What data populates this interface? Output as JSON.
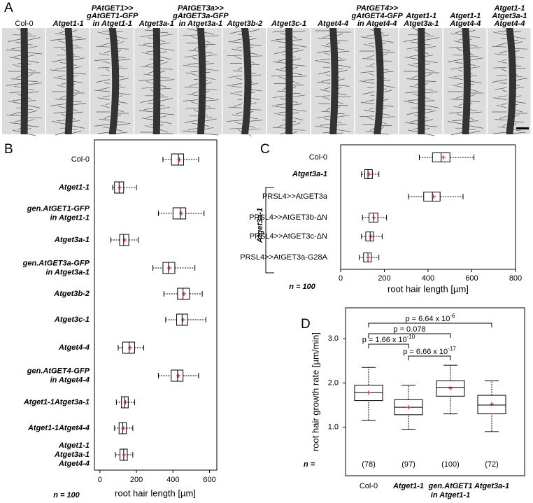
{
  "panel_labels": [
    "A",
    "B",
    "C",
    "D"
  ],
  "panel_a": {
    "columns": [
      [
        "Col-0"
      ],
      [
        "Atget1-1"
      ],
      [
        "PAtGET1>>",
        "gAtGET1-GFP",
        "in Atget1-1"
      ],
      [
        "Atget3a-1"
      ],
      [
        "PAtGET3a>>",
        "gAtGET3a-GFP",
        "in Atget3a-1"
      ],
      [
        "Atget3b-2"
      ],
      [
        "Atget3c-1"
      ],
      [
        "Atget4-4"
      ],
      [
        "PAtGET4>>",
        "gAtGET4-GFP",
        "in Atget4-4"
      ],
      [
        "Atget1-1",
        "Atget3a-1"
      ],
      [
        "Atget1-1",
        "Atget4-4"
      ],
      [
        "Atget1-1",
        "Atget3a-1",
        "Atget4-4"
      ]
    ]
  },
  "chart_data": [
    {
      "type": "box",
      "orientation": "horizontal",
      "categories": [
        [
          "Col-0"
        ],
        [
          "Atget1-1"
        ],
        [
          "gen.AtGET1-GFP",
          "in Atget1-1"
        ],
        [
          "Atget3a-1"
        ],
        [
          "gen.AtGET3a-GFP",
          "in Atget3a-1"
        ],
        [
          "Atget3b-2"
        ],
        [
          "Atget3c-1"
        ],
        [
          "Atget4-4"
        ],
        [
          "gen.AtGET4-GFP",
          "in Atget4-4"
        ],
        [
          "Atget1-1Atget3a-1"
        ],
        [
          "Atget1-1Atget4-4"
        ],
        [
          "Atget1-1",
          "Atget3a-1",
          "Atget4-4"
        ]
      ],
      "boxes": [
        {
          "min": 345,
          "q1": 392,
          "median": 430,
          "q3": 458,
          "max": 540,
          "mean": 435
        },
        {
          "min": 70,
          "q1": 80,
          "median": 105,
          "q3": 130,
          "max": 200,
          "mean": 108
        },
        {
          "min": 320,
          "q1": 400,
          "median": 440,
          "q3": 470,
          "max": 570,
          "mean": 445
        },
        {
          "min": 60,
          "q1": 108,
          "median": 130,
          "q3": 158,
          "max": 210,
          "mean": 135
        },
        {
          "min": 290,
          "q1": 345,
          "median": 375,
          "q3": 410,
          "max": 520,
          "mean": 380
        },
        {
          "min": 350,
          "q1": 425,
          "median": 455,
          "q3": 490,
          "max": 560,
          "mean": 460
        },
        {
          "min": 360,
          "q1": 420,
          "median": 450,
          "q3": 480,
          "max": 580,
          "mean": 455
        },
        {
          "min": 100,
          "q1": 125,
          "median": 160,
          "q3": 190,
          "max": 240,
          "mean": 165
        },
        {
          "min": 320,
          "q1": 390,
          "median": 425,
          "q3": 455,
          "max": 540,
          "mean": 430
        },
        {
          "min": 90,
          "q1": 118,
          "median": 135,
          "q3": 155,
          "max": 190,
          "mean": 140
        },
        {
          "min": 80,
          "q1": 105,
          "median": 125,
          "q3": 145,
          "max": 180,
          "mean": 128
        },
        {
          "min": 85,
          "q1": 110,
          "median": 130,
          "q3": 150,
          "max": 180,
          "mean": 132
        }
      ],
      "box_color": "#000000",
      "mean_color": "#e02020",
      "xlim": [
        -30,
        640
      ],
      "xticks": [
        0,
        200,
        400,
        600
      ],
      "x_label": "root hair length [µm]",
      "note": "n = 100"
    },
    {
      "type": "box",
      "orientation": "horizontal",
      "categories": [
        [
          "Col-0"
        ],
        [
          "Atget3a-1"
        ],
        [
          "PRSL4>>AtGET3a"
        ],
        [
          "PRSL4>>AtGET3b-ΔN"
        ],
        [
          "PRSL4>>AtGET3c-ΔN"
        ],
        [
          "PRSL4>>AtGET3a-G28A"
        ]
      ],
      "boxes": [
        {
          "min": 360,
          "q1": 420,
          "median": 460,
          "q3": 500,
          "max": 610,
          "mean": 470
        },
        {
          "min": 95,
          "q1": 110,
          "median": 125,
          "q3": 145,
          "max": 175,
          "mean": 130
        },
        {
          "min": 310,
          "q1": 380,
          "median": 420,
          "q3": 455,
          "max": 560,
          "mean": 425
        },
        {
          "min": 100,
          "q1": 130,
          "median": 150,
          "q3": 170,
          "max": 210,
          "mean": 152
        },
        {
          "min": 95,
          "q1": 115,
          "median": 135,
          "q3": 150,
          "max": 190,
          "mean": 138
        },
        {
          "min": 85,
          "q1": 105,
          "median": 125,
          "q3": 140,
          "max": 175,
          "mean": 125
        }
      ],
      "box_color": "#000000",
      "mean_color": "#e02020",
      "bracket_label": "Atget3a-1",
      "xlim": [
        0,
        800
      ],
      "xticks": [
        0,
        200,
        400,
        600,
        800
      ],
      "x_label": "root hair length [µm]",
      "note": "n = 100"
    },
    {
      "type": "box",
      "orientation": "vertical",
      "categories": [
        [
          "Col-0"
        ],
        [
          "Atget1-1"
        ],
        [
          "gen.AtGET1",
          "in Atget1-1"
        ],
        [
          "Atget3a-1"
        ]
      ],
      "boxes": [
        {
          "min": 1.15,
          "q1": 1.6,
          "median": 1.78,
          "q3": 1.95,
          "max": 2.35,
          "mean": 1.78
        },
        {
          "min": 0.95,
          "q1": 1.28,
          "median": 1.45,
          "q3": 1.62,
          "max": 1.95,
          "mean": 1.45
        },
        {
          "min": 1.3,
          "q1": 1.7,
          "median": 1.9,
          "q3": 2.05,
          "max": 2.4,
          "mean": 1.88
        },
        {
          "min": 0.9,
          "q1": 1.3,
          "median": 1.5,
          "q3": 1.72,
          "max": 2.05,
          "mean": 1.52
        }
      ],
      "box_color": "#000000",
      "mean_color": "#e02020",
      "ylim": [
        -0.1,
        3.7
      ],
      "yticks": [
        {
          "value": 1,
          "label": "1.0"
        },
        {
          "value": 2,
          "label": "2.0"
        },
        {
          "value": 3,
          "label": "3.0"
        }
      ],
      "y_label": "root hair growth rate [µm/min]",
      "n_label": "n =",
      "sample_sizes": [
        "(78)",
        "(97)",
        "(100)",
        "(72)"
      ],
      "annotations": [
        {
          "text": "p = 6.64 x 10",
          "superscript": "-6"
        },
        {
          "text": "p = 0.078"
        },
        {
          "text": "p = 1.66 x 10",
          "superscript": "-10"
        },
        {
          "text": "p = 6.66 x 10",
          "superscript": "-17"
        }
      ]
    }
  ]
}
